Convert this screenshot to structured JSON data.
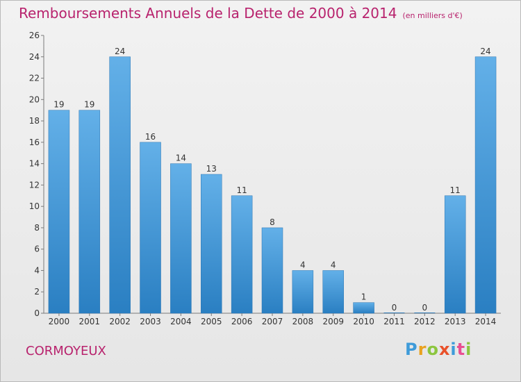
{
  "title": "Remboursements Annuels de la Dette de 2000 à 2014",
  "unit_note": "(en milliers d'€)",
  "commune": "CORMOYEUX",
  "brand": {
    "letters": [
      "P",
      "r",
      "o",
      "x",
      "i",
      "t",
      "i"
    ],
    "colors": [
      "#3e9bd9",
      "#e9a21f",
      "#8cc63f",
      "#e9512a",
      "#3e9bd9",
      "#e94e92",
      "#8cc63f"
    ]
  },
  "colors": {
    "title": "#b8226d",
    "bar_top": "#63b0e8",
    "bar_bottom": "#2a7fc2"
  },
  "chart_data": {
    "type": "bar",
    "categories": [
      "2000",
      "2001",
      "2002",
      "2003",
      "2004",
      "2005",
      "2006",
      "2007",
      "2008",
      "2009",
      "2010",
      "2011",
      "2012",
      "2013",
      "2014"
    ],
    "values": [
      19,
      19,
      24,
      16,
      14,
      13,
      11,
      8,
      4,
      4,
      1,
      0,
      0,
      11,
      24
    ],
    "ylim": [
      0,
      26
    ],
    "yticks": [
      0,
      2,
      4,
      6,
      8,
      10,
      12,
      14,
      16,
      18,
      20,
      22,
      24,
      26
    ],
    "grid": false,
    "data_labels": true
  }
}
